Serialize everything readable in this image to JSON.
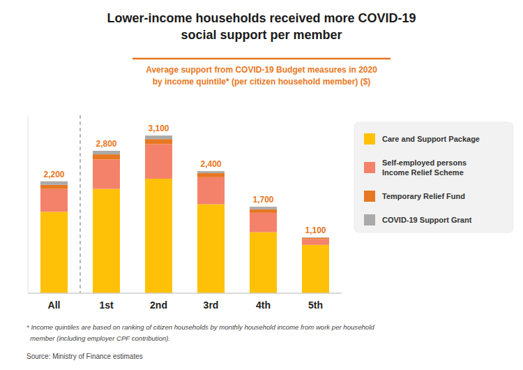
{
  "chart_data": {
    "type": "bar",
    "stacked": true,
    "title": "Lower-income households received more COVID-19\nsocial support per member",
    "subtitle": "Average support from COVID-19 Budget measures in 2020\nby income quintile* (per citizen household member) ($)",
    "categories": [
      "All",
      "1st",
      "2nd",
      "3rd",
      "4th",
      "5th"
    ],
    "series": [
      {
        "name": "Care and Support Package",
        "color": "#FFC107",
        "values": [
          1600,
          2050,
          2250,
          1750,
          1200,
          950
        ]
      },
      {
        "name": "Self-employed persons\nIncome Relief Scheme",
        "color": "#F4826A",
        "values": [
          450,
          580,
          680,
          530,
          380,
          115
        ]
      },
      {
        "name": "Temporary Relief Fund",
        "color": "#E87722",
        "values": [
          80,
          100,
          100,
          80,
          70,
          25
        ]
      },
      {
        "name": "COVID-19 Support Grant",
        "color": "#AAAAAA",
        "values": [
          70,
          70,
          70,
          40,
          50,
          10
        ]
      }
    ],
    "totals": {
      "values": [
        2200,
        2800,
        3100,
        2400,
        1700,
        1100
      ],
      "value_labels": [
        "2,200",
        "2,800",
        "3,100",
        "2,400",
        "1,700",
        "1,100"
      ]
    },
    "annotations": [
      "* Income quintiles are based on ranking of citizen households by monthly household income from work per household",
      "  member (including employer CPF contribution).",
      "Source: Ministry of Finance estimates"
    ],
    "ylim": [
      0,
      3500
    ],
    "tick_labels": "x",
    "grid": false,
    "legend": "right"
  }
}
